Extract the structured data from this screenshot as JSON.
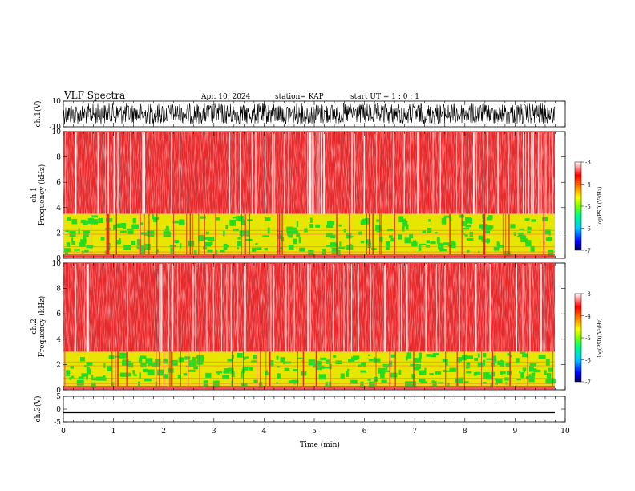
{
  "header": {
    "title": "VLF Spectra",
    "date": "Apr. 10, 2024",
    "station": "station= KAP",
    "start": "start  UT =   1 : 0  : 1"
  },
  "colors": {
    "spectro_red": "#e8282a",
    "spectro_yellow": "#e6e600",
    "spectro_green": "#22dd22",
    "colorbar_stops": [
      "#000050",
      "#0000ff",
      "#00c8ff",
      "#00ff80",
      "#80ff00",
      "#ffff00",
      "#ff8000",
      "#ff0000",
      "#ffffff"
    ]
  },
  "chart_data": [
    {
      "type": "line",
      "panel": "ch1-waveform",
      "ylabel": "ch.1(V)",
      "ylim": [
        -10,
        10
      ],
      "yticks": [
        "10",
        "-10"
      ],
      "xlim": [
        0,
        10
      ],
      "description_values": {
        "amplitude_range": [
          -10,
          10
        ]
      }
    },
    {
      "type": "heatmap",
      "panel": "ch1-spectrogram",
      "ylabel": "ch.1\nFrequency  (kHz)",
      "ylim": [
        0,
        10
      ],
      "yticks": [
        "0",
        "2",
        "4",
        "6",
        "8",
        "10"
      ],
      "xlim": [
        0,
        9.8
      ],
      "bands": [
        {
          "name": "red",
          "from_khz": 3.5,
          "to_khz": 10
        },
        {
          "name": "yellow-green",
          "from_khz": 0.3,
          "to_khz": 3.5
        }
      ],
      "colorbar": {
        "label": "log(PSD)(V²/Hz)",
        "ticks": [
          "-3",
          "-4",
          "-5",
          "-6",
          "-7"
        ],
        "range": [
          -7,
          -3
        ]
      }
    },
    {
      "type": "heatmap",
      "panel": "ch2-spectrogram",
      "ylabel": "ch.2\nFrequency  (kHz)",
      "ylim": [
        0,
        10
      ],
      "yticks": [
        "0",
        "2",
        "4",
        "6",
        "8",
        "10"
      ],
      "xlim": [
        0,
        9.8
      ],
      "bands": [
        {
          "name": "red",
          "from_khz": 3.0,
          "to_khz": 10
        },
        {
          "name": "yellow-green",
          "from_khz": 0.3,
          "to_khz": 3.0
        }
      ],
      "colorbar": {
        "label": "log(PSD)(V²/Hz)",
        "ticks": [
          "-3",
          "-4",
          "-5",
          "-6",
          "-7"
        ],
        "range": [
          -7,
          -3
        ]
      }
    },
    {
      "type": "line",
      "panel": "ch3-waveform",
      "ylabel": "ch.3(V)",
      "ylim": [
        -5,
        5
      ],
      "yticks": [
        "5",
        "0",
        "-5"
      ],
      "xlim": [
        0,
        10
      ],
      "level": [
        -1.6,
        -0.9
      ]
    }
  ],
  "xaxis": {
    "label": "Time  (min)",
    "ticks": [
      "0",
      "1",
      "2",
      "3",
      "4",
      "5",
      "6",
      "7",
      "8",
      "9",
      "10"
    ],
    "range": [
      0,
      10
    ]
  }
}
